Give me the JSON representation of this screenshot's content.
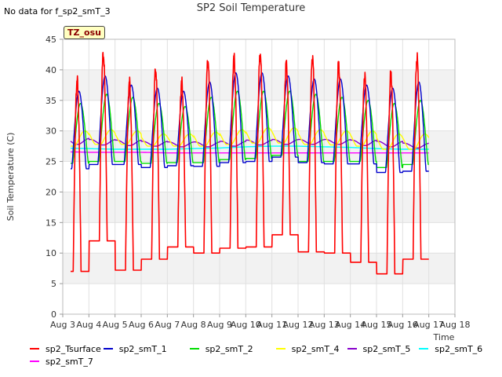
{
  "nodata_text": "No data for f_sp2_smT_3",
  "badge_text": "TZ_osu",
  "chart_data": {
    "type": "line",
    "title": "SP2 Soil Temperature",
    "xlabel": "Time",
    "ylabel": "Soil Temperature (C)",
    "ylim": [
      0,
      45
    ],
    "xlim": [
      3,
      18
    ],
    "yticks": [
      0,
      5,
      10,
      15,
      20,
      25,
      30,
      35,
      40,
      45
    ],
    "xticks": [
      3,
      4,
      5,
      6,
      7,
      8,
      9,
      10,
      11,
      12,
      13,
      14,
      15,
      16,
      17,
      18
    ],
    "xtick_labels": [
      "Aug 3",
      "Aug 4",
      "Aug 5",
      "Aug 6",
      "Aug 7",
      "Aug 8",
      "Aug 9",
      "Aug 10",
      "Aug 11",
      "Aug 12",
      "Aug 13",
      "Aug 14",
      "Aug 15",
      "Aug 16",
      "Aug 17",
      "Aug 18"
    ],
    "x_start": 3.3,
    "x_end": 17.0,
    "grid": true,
    "series": [
      {
        "name": "sp2_Tsurface",
        "color": "#ff0000",
        "kind": "daily",
        "peak_phase": 0.55,
        "peak_width": 0.3,
        "skew": 2.2,
        "maxs": [
          38.3,
          42.5,
          38.0,
          40.0,
          38.0,
          41.5,
          42.0,
          42.5,
          41.0,
          42.0,
          41.0,
          39.0,
          39.5,
          42.0
        ],
        "mins": [
          7.0,
          12.0,
          7.2,
          9.0,
          11.0,
          10.0,
          10.8,
          11.0,
          13.0,
          10.2,
          10.0,
          8.5,
          6.6,
          9.0
        ]
      },
      {
        "name": "sp2_smT_1",
        "color": "#0000cc",
        "kind": "daily",
        "peak_phase": 0.62,
        "peak_width": 0.55,
        "skew": 1.2,
        "maxs": [
          36.5,
          39.0,
          37.5,
          37.0,
          36.5,
          38.0,
          39.5,
          39.5,
          39.0,
          38.5,
          38.5,
          37.5,
          37.0,
          38.0
        ],
        "mins": [
          23.8,
          24.5,
          24.5,
          24.0,
          24.3,
          24.2,
          24.8,
          25.0,
          25.7,
          24.8,
          24.6,
          24.6,
          23.2,
          23.4
        ]
      },
      {
        "name": "sp2_smT_2",
        "color": "#00dd00",
        "kind": "daily",
        "peak_phase": 0.68,
        "peak_width": 0.6,
        "skew": 1.0,
        "maxs": [
          34.5,
          36.0,
          35.5,
          34.5,
          34.0,
          35.5,
          36.5,
          36.5,
          36.5,
          36.0,
          35.5,
          35.0,
          34.5,
          35.0
        ],
        "mins": [
          24.7,
          25.0,
          25.0,
          24.7,
          24.8,
          24.8,
          25.3,
          25.5,
          26.0,
          25.0,
          25.0,
          25.0,
          24.0,
          24.5
        ]
      },
      {
        "name": "sp2_smT_4",
        "color": "#ffff00",
        "kind": "daily",
        "peak_phase": 0.85,
        "peak_width": 0.8,
        "skew": 0.0,
        "maxs": [
          30.0,
          30.2,
          30.0,
          29.5,
          29.5,
          29.8,
          30.2,
          30.5,
          30.5,
          30.2,
          30.0,
          30.0,
          29.5,
          29.5
        ],
        "mins": [
          27.5,
          27.8,
          27.8,
          27.5,
          27.5,
          27.5,
          27.8,
          28.0,
          28.0,
          27.8,
          27.7,
          27.5,
          27.0,
          27.0
        ]
      },
      {
        "name": "sp2_smT_5",
        "color": "#8800cc",
        "kind": "daily",
        "peak_phase": 0.05,
        "peak_width": 0.9,
        "skew": 0.0,
        "maxs": [
          28.8,
          28.6,
          28.5,
          28.3,
          28.2,
          28.2,
          28.3,
          28.5,
          28.6,
          28.6,
          28.6,
          28.5,
          28.3,
          28.0
        ],
        "mins": [
          27.8,
          27.7,
          27.6,
          27.5,
          27.4,
          27.4,
          27.5,
          27.7,
          27.8,
          27.8,
          27.8,
          27.6,
          27.4,
          27.2
        ]
      },
      {
        "name": "sp2_smT_6",
        "color": "#00ffff",
        "kind": "flat",
        "values": [
          27.2,
          27.1,
          27.0,
          27.0,
          27.0,
          27.1,
          27.2,
          27.4,
          27.5,
          27.5,
          27.4,
          27.3,
          27.1,
          27.0
        ]
      },
      {
        "name": "sp2_smT_7",
        "color": "#ff00ff",
        "kind": "flat",
        "values": [
          26.6,
          26.5,
          26.5,
          26.5,
          26.4,
          26.4,
          26.4,
          26.4,
          26.4,
          26.4,
          26.4,
          26.4,
          26.4,
          26.4
        ]
      }
    ]
  }
}
